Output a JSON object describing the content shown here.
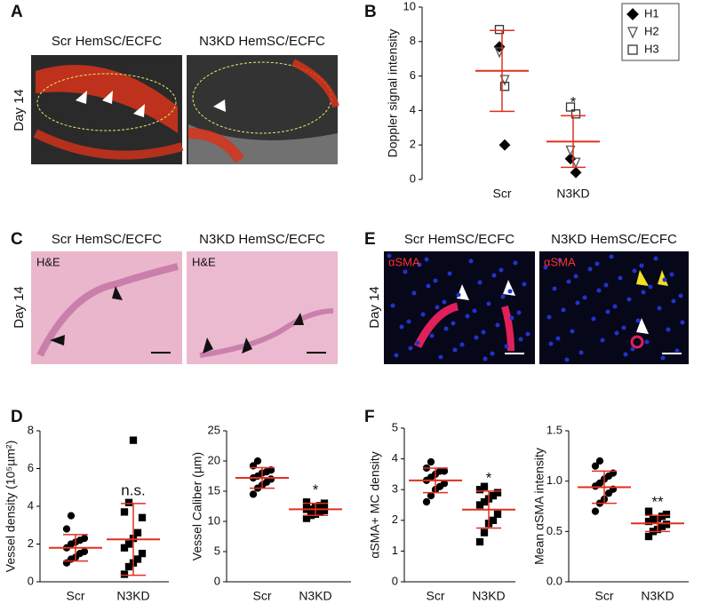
{
  "panel_images": [
    {
      "label": "A",
      "day": "Day 14",
      "captions": [
        "Scr HemSC/ECFC",
        "N3KD HemSC/ECFC"
      ]
    },
    {
      "label": "C",
      "day": "Day 14",
      "captions": [
        "Scr HemSC/ECFC",
        "N3KD HemSC/ECFC"
      ],
      "stains": [
        "H&E",
        "H&E"
      ]
    },
    {
      "label": "E",
      "day": "Day 14",
      "captions": [
        "Scr HemSC/ECFC",
        "N3KD HemSC/ECFC"
      ],
      "stains": [
        "αSMA",
        "αSMA"
      ]
    }
  ],
  "chart_data": [
    {
      "type": "strip",
      "panel_label": "B",
      "ylabel": "Doppler signal intensity",
      "categories": [
        "Scr",
        "N3KD"
      ],
      "ylim": [
        0,
        10
      ],
      "yticks": [
        0,
        2,
        4,
        6,
        8,
        10
      ],
      "legend": "top-right",
      "series": [
        {
          "name": "H1",
          "marker": "diamond",
          "filled": true,
          "color": "#000000",
          "values": [
            [
              7.7,
              2.0
            ],
            [
              1.2,
              0.4
            ]
          ]
        },
        {
          "name": "H2",
          "marker": "triangle-down",
          "filled": false,
          "color": "#555555",
          "values": [
            [
              7.4,
              5.8
            ],
            [
              1.7,
              1.0
            ]
          ]
        },
        {
          "name": "H3",
          "marker": "square",
          "filled": false,
          "color": "#333333",
          "values": [
            [
              8.7,
              5.4
            ],
            [
              4.2,
              3.8
            ]
          ]
        }
      ],
      "mean": [
        6.3,
        2.2
      ],
      "error": [
        2.35,
        1.5
      ],
      "summary_color": "#e0301e",
      "significance": [
        null,
        "*"
      ]
    },
    {
      "type": "strip",
      "panel_label": "D",
      "ylabel": "Vessel density (10⁵µm²)",
      "categories": [
        "Scr",
        "N3KD"
      ],
      "ylim": [
        0,
        8
      ],
      "yticks": [
        0,
        2,
        4,
        6,
        8
      ],
      "markers": [
        "circle",
        "square"
      ],
      "color": "#000000",
      "values": [
        [
          1.0,
          1.2,
          1.3,
          1.5,
          1.6,
          1.8,
          2.0,
          2.1,
          2.2,
          2.3,
          2.8,
          3.5
        ],
        [
          0.4,
          0.8,
          1.0,
          1.2,
          1.5,
          1.8,
          2.0,
          2.3,
          2.6,
          3.4,
          3.7,
          4.2,
          7.5
        ]
      ],
      "mean": [
        1.8,
        2.25
      ],
      "error": [
        0.7,
        1.9
      ],
      "summary_color": "#e0301e",
      "significance": [
        null,
        "n.s."
      ]
    },
    {
      "type": "strip",
      "ylabel": "Vessel Caliber (µm)",
      "categories": [
        "Scr",
        "N3KD"
      ],
      "ylim": [
        0,
        25
      ],
      "yticks": [
        0,
        5,
        10,
        15,
        20,
        25
      ],
      "markers": [
        "circle",
        "square"
      ],
      "color": "#000000",
      "values": [
        [
          14.5,
          15.5,
          16,
          16.5,
          17,
          17.2,
          17.5,
          18,
          18.2,
          18.5,
          19.2,
          20
        ],
        [
          10.5,
          11,
          11.2,
          11.5,
          11.8,
          12,
          12,
          12.3,
          12.6,
          13,
          13.2
        ]
      ],
      "mean": [
        17.2,
        12
      ],
      "error": [
        1.7,
        1
      ],
      "summary_color": "#e0301e",
      "significance": [
        null,
        "*"
      ]
    },
    {
      "type": "strip",
      "panel_label": "F",
      "ylabel": "αSMA+ MC density",
      "categories": [
        "Scr",
        "N3KD"
      ],
      "ylim": [
        0,
        5
      ],
      "yticks": [
        0,
        1,
        2,
        3,
        4,
        5
      ],
      "markers": [
        "circle",
        "square"
      ],
      "color": "#000000",
      "values": [
        [
          2.6,
          2.8,
          3.0,
          3.1,
          3.2,
          3.3,
          3.4,
          3.5,
          3.6,
          3.6,
          3.7,
          3.9
        ],
        [
          1.3,
          1.6,
          1.9,
          2.0,
          2.2,
          2.5,
          2.6,
          2.7,
          2.8,
          2.9,
          3.0,
          3.1
        ]
      ],
      "mean": [
        3.3,
        2.35
      ],
      "error": [
        0.4,
        0.6
      ],
      "summary_color": "#e0301e",
      "significance": [
        null,
        "*"
      ]
    },
    {
      "type": "strip",
      "ylabel": "Mean αSMA intensity",
      "categories": [
        "Scr",
        "N3KD"
      ],
      "ylim": [
        0,
        1.5
      ],
      "yticks": [
        {
          "value": 0,
          "label": "0.0"
        },
        {
          "value": 0.5,
          "label": "0.5"
        },
        {
          "value": 1,
          "label": "1.0"
        },
        {
          "value": 1.5,
          "label": "1.5"
        }
      ],
      "markers": [
        "circle",
        "square"
      ],
      "color": "#000000",
      "values": [
        [
          0.7,
          0.78,
          0.82,
          0.88,
          0.92,
          0.95,
          0.98,
          1.02,
          1.05,
          1.08,
          1.15,
          1.2
        ],
        [
          0.45,
          0.5,
          0.52,
          0.55,
          0.57,
          0.6,
          0.62,
          0.63,
          0.65,
          0.67,
          0.7
        ]
      ],
      "mean": [
        0.94,
        0.58
      ],
      "error": [
        0.16,
        0.08
      ],
      "summary_color": "#e0301e",
      "significance": [
        null,
        "**"
      ]
    }
  ]
}
